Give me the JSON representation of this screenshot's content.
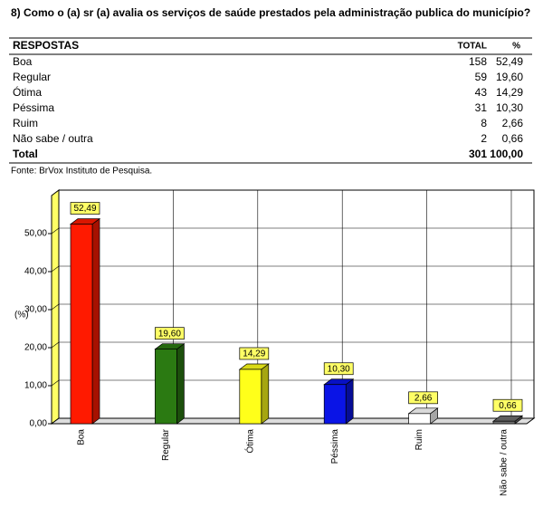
{
  "title": "8) Como o (a) sr (a) avalia os serviços de saúde prestados pela administração publica do município?",
  "table": {
    "columns": [
      "RESPOSTAS",
      "TOTAL",
      "%"
    ],
    "rows": [
      [
        "Boa",
        158,
        "52,49"
      ],
      [
        "Regular",
        59,
        "19,60"
      ],
      [
        "Ótima",
        43,
        "14,29"
      ],
      [
        "Péssima",
        31,
        "10,30"
      ],
      [
        "Ruim",
        8,
        "2,66"
      ],
      [
        "Não sabe / outra",
        2,
        "0,66"
      ]
    ],
    "total": [
      "Total",
      301,
      "100,00"
    ]
  },
  "source": "Fonte: BrVox Instituto de Pesquisa.",
  "chart_data": {
    "type": "bar3d",
    "ylabel": "(%)",
    "categories": [
      "Boa",
      "Regular",
      "Ótima",
      "Péssima",
      "Ruim",
      "Não sabe / outra"
    ],
    "values": [
      52.49,
      19.6,
      14.29,
      10.3,
      2.66,
      0.66
    ],
    "value_labels": [
      "52,49",
      "19,60",
      "14,29",
      "10,30",
      "2,66",
      "0,66"
    ],
    "colors": [
      "#ff1a00",
      "#2b7a12",
      "#ffff1a",
      "#0a14e6",
      "#ffffff",
      "#6e6e6e"
    ],
    "ylim": [
      0,
      60
    ],
    "yticks": [
      {
        "value": 0,
        "label": "0,00"
      },
      {
        "value": 10,
        "label": "10,00"
      },
      {
        "value": 20,
        "label": "20,00"
      },
      {
        "value": 30,
        "label": "30,00"
      },
      {
        "value": 40,
        "label": "40,00"
      },
      {
        "value": 50,
        "label": "50,00"
      }
    ],
    "grid": true
  }
}
